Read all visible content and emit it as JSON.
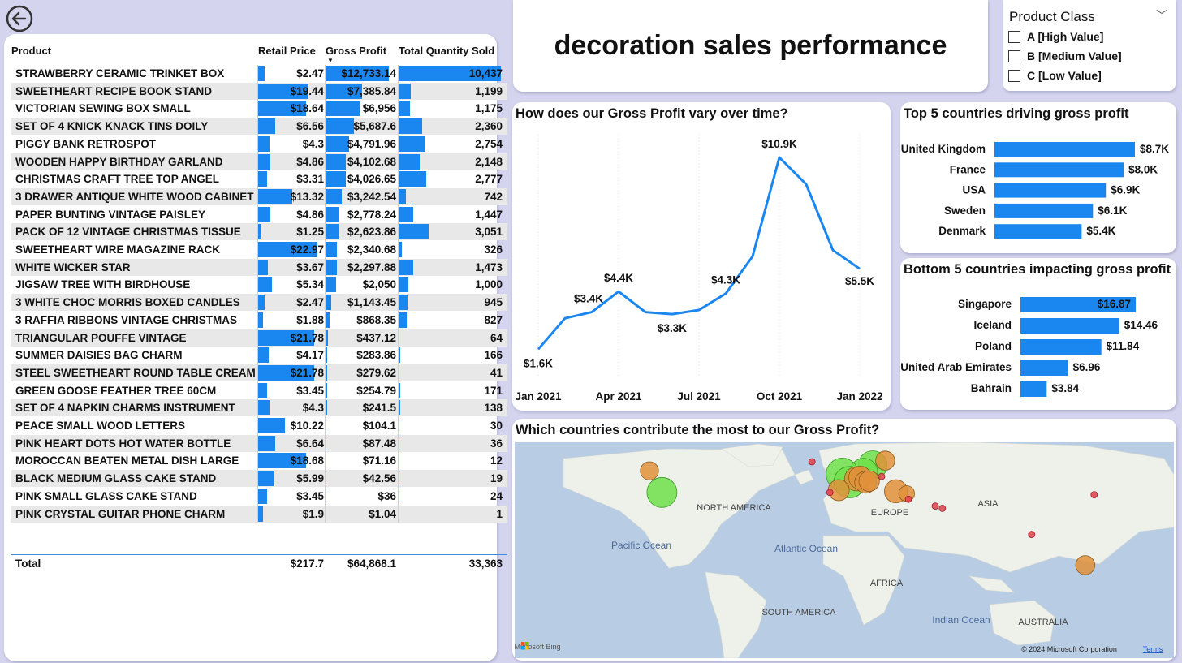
{
  "title": "decoration sales performance",
  "table": {
    "headers": {
      "product": "Product",
      "retail_price": "Retail Price",
      "gross_profit": "Gross Profit",
      "total_quantity": "Total Quantity Sold"
    },
    "rows": [
      {
        "product": "STRAWBERRY CERAMIC TRINKET BOX",
        "price": "$2.47",
        "price_v": 2.47,
        "profit": "$12,733.14",
        "profit_v": 12733.14,
        "qty": "10,437",
        "qty_v": 10437
      },
      {
        "product": "SWEETHEART RECIPE BOOK STAND",
        "price": "$19.44",
        "price_v": 19.44,
        "profit": "$7,385.84",
        "profit_v": 7385.84,
        "qty": "1,199",
        "qty_v": 1199
      },
      {
        "product": "VICTORIAN SEWING BOX SMALL",
        "price": "$18.64",
        "price_v": 18.64,
        "profit": "$6,956",
        "profit_v": 6956,
        "qty": "1,175",
        "qty_v": 1175
      },
      {
        "product": "SET OF 4 KNICK KNACK TINS DOILY",
        "price": "$6.56",
        "price_v": 6.56,
        "profit": "$5,687.6",
        "profit_v": 5687.6,
        "qty": "2,360",
        "qty_v": 2360
      },
      {
        "product": "PIGGY BANK RETROSPOT",
        "price": "$4.3",
        "price_v": 4.3,
        "profit": "$4,791.96",
        "profit_v": 4791.96,
        "qty": "2,754",
        "qty_v": 2754
      },
      {
        "product": "WOODEN HAPPY BIRTHDAY GARLAND",
        "price": "$4.86",
        "price_v": 4.86,
        "profit": "$4,102.68",
        "profit_v": 4102.68,
        "qty": "2,148",
        "qty_v": 2148
      },
      {
        "product": "CHRISTMAS CRAFT TREE TOP ANGEL",
        "price": "$3.31",
        "price_v": 3.31,
        "profit": "$4,026.65",
        "profit_v": 4026.65,
        "qty": "2,777",
        "qty_v": 2777
      },
      {
        "product": "3 DRAWER ANTIQUE WHITE WOOD CABINET",
        "price": "$13.32",
        "price_v": 13.32,
        "profit": "$3,242.54",
        "profit_v": 3242.54,
        "qty": "742",
        "qty_v": 742
      },
      {
        "product": "PAPER BUNTING VINTAGE PAISLEY",
        "price": "$4.86",
        "price_v": 4.86,
        "profit": "$2,778.24",
        "profit_v": 2778.24,
        "qty": "1,447",
        "qty_v": 1447
      },
      {
        "product": "PACK OF 12 VINTAGE CHRISTMAS TISSUE",
        "price": "$1.25",
        "price_v": 1.25,
        "profit": "$2,623.86",
        "profit_v": 2623.86,
        "qty": "3,051",
        "qty_v": 3051
      },
      {
        "product": "SWEETHEART WIRE MAGAZINE RACK",
        "price": "$22.97",
        "price_v": 22.97,
        "profit": "$2,340.68",
        "profit_v": 2340.68,
        "qty": "326",
        "qty_v": 326
      },
      {
        "product": "WHITE WICKER STAR",
        "price": "$3.67",
        "price_v": 3.67,
        "profit": "$2,297.88",
        "profit_v": 2297.88,
        "qty": "1,473",
        "qty_v": 1473
      },
      {
        "product": "JIGSAW TREE WITH BIRDHOUSE",
        "price": "$5.34",
        "price_v": 5.34,
        "profit": "$2,050",
        "profit_v": 2050,
        "qty": "1,000",
        "qty_v": 1000
      },
      {
        "product": "3 WHITE CHOC MORRIS BOXED CANDLES",
        "price": "$2.47",
        "price_v": 2.47,
        "profit": "$1,143.45",
        "profit_v": 1143.45,
        "qty": "945",
        "qty_v": 945
      },
      {
        "product": "3 RAFFIA RIBBONS VINTAGE CHRISTMAS",
        "price": "$1.88",
        "price_v": 1.88,
        "profit": "$868.35",
        "profit_v": 868.35,
        "qty": "827",
        "qty_v": 827
      },
      {
        "product": "TRIANGULAR POUFFE VINTAGE",
        "price": "$21.78",
        "price_v": 21.78,
        "profit": "$437.12",
        "profit_v": 437.12,
        "qty": "64",
        "qty_v": 64
      },
      {
        "product": "SUMMER DAISIES BAG CHARM",
        "price": "$4.17",
        "price_v": 4.17,
        "profit": "$283.86",
        "profit_v": 283.86,
        "qty": "166",
        "qty_v": 166
      },
      {
        "product": "STEEL SWEETHEART ROUND TABLE CREAM",
        "price": "$21.78",
        "price_v": 21.78,
        "profit": "$279.62",
        "profit_v": 279.62,
        "qty": "41",
        "qty_v": 41
      },
      {
        "product": "GREEN GOOSE FEATHER TREE 60CM",
        "price": "$3.45",
        "price_v": 3.45,
        "profit": "$254.79",
        "profit_v": 254.79,
        "qty": "171",
        "qty_v": 171
      },
      {
        "product": "SET OF 4 NAPKIN CHARMS INSTRUMENT",
        "price": "$4.3",
        "price_v": 4.3,
        "profit": "$241.5",
        "profit_v": 241.5,
        "qty": "138",
        "qty_v": 138
      },
      {
        "product": "PEACE SMALL WOOD LETTERS",
        "price": "$10.22",
        "price_v": 10.22,
        "profit": "$104.1",
        "profit_v": 104.1,
        "qty": "30",
        "qty_v": 30
      },
      {
        "product": "PINK HEART DOTS HOT WATER BOTTLE",
        "price": "$6.64",
        "price_v": 6.64,
        "profit": "$87.48",
        "profit_v": 87.48,
        "qty": "36",
        "qty_v": 36
      },
      {
        "product": "MOROCCAN BEATEN METAL DISH LARGE",
        "price": "$18.68",
        "price_v": 18.68,
        "profit": "$71.16",
        "profit_v": 71.16,
        "qty": "12",
        "qty_v": 12
      },
      {
        "product": "BLACK MEDIUM GLASS CAKE STAND",
        "price": "$5.99",
        "price_v": 5.99,
        "profit": "$42.56",
        "profit_v": 42.56,
        "qty": "19",
        "qty_v": 19
      },
      {
        "product": "PINK SMALL GLASS CAKE STAND",
        "price": "$3.45",
        "price_v": 3.45,
        "profit": "$36",
        "profit_v": 36,
        "qty": "24",
        "qty_v": 24
      },
      {
        "product": "PINK CRYSTAL GUITAR PHONE CHARM",
        "price": "$1.9",
        "price_v": 1.9,
        "profit": "$1.04",
        "profit_v": 1.04,
        "qty": "1",
        "qty_v": 1
      }
    ],
    "total": {
      "label": "Total",
      "price": "$217.7",
      "profit": "$64,868.1",
      "qty": "33,363"
    }
  },
  "slicer": {
    "title": "Product Class",
    "options": [
      "A [High Value]",
      "B [Medium Value]",
      "C [Low Value]"
    ]
  },
  "colors": {
    "bar": "#1a86f0",
    "line": "#1a86f0",
    "map_green": "#6ee04a",
    "map_orange": "#e0903a",
    "map_red": "#e0404a"
  },
  "map_labels": {
    "north_america": "NORTH AMERICA",
    "europe": "EUROPE",
    "asia": "ASIA",
    "africa": "AFRICA",
    "south_america": "SOUTH AMERICA",
    "australia": "AUSTRALIA",
    "pacific": "Pacific Ocean",
    "atlantic": "Atlantic Ocean",
    "indian": "Indian Ocean",
    "bing": "Microsoft Bing",
    "copyright": "© 2024 Microsoft Corporation",
    "terms": "Terms"
  },
  "chart_data": [
    {
      "type": "line",
      "title": "How does our Gross Profit vary over time?",
      "x_ticks": [
        "Jan 2021",
        "Apr 2021",
        "Jul 2021",
        "Oct 2021",
        "Jan 2022"
      ],
      "x": [
        "Jan 2021",
        "Feb 2021",
        "Mar 2021",
        "Apr 2021",
        "May 2021",
        "Jun 2021",
        "Jul 2021",
        "Aug 2021",
        "Sep 2021",
        "Oct 2021",
        "Nov 2021",
        "Dec 2021",
        "Jan 2022"
      ],
      "values": [
        1600,
        3100,
        3400,
        4400,
        3400,
        3300,
        3500,
        4300,
        6100,
        10900,
        9600,
        6400,
        5500
      ],
      "labels": [
        "$1.6K",
        "",
        "$3.4K",
        "$4.4K",
        "",
        "$3.3K",
        "",
        "$4.3K",
        "",
        "$10.9K",
        "",
        "",
        "$5.5K"
      ],
      "ylim": [
        0,
        12000
      ]
    },
    {
      "type": "bar",
      "orientation": "horizontal",
      "title": "Top 5 countries driving gross profit",
      "categories": [
        "United Kingdom",
        "France",
        "USA",
        "Sweden",
        "Denmark"
      ],
      "values": [
        8700,
        8000,
        6900,
        6100,
        5400
      ],
      "labels": [
        "$8.7K",
        "$8.0K",
        "$6.9K",
        "$6.1K",
        "$5.4K"
      ]
    },
    {
      "type": "bar",
      "orientation": "horizontal",
      "title": "Bottom 5 countries impacting gross profit",
      "categories": [
        "Singapore",
        "Iceland",
        "Poland",
        "United Arab Emirates",
        "Bahrain"
      ],
      "values": [
        16.87,
        14.46,
        11.84,
        6.96,
        3.84
      ],
      "labels": [
        "$16.87",
        "$14.46",
        "$11.84",
        "$6.96",
        "$3.84"
      ]
    },
    {
      "type": "scatter",
      "subtype": "bubble-map",
      "title": "Which countries contribute the most to our Gross Profit?",
      "points": [
        {
          "lon": -103,
          "lat": 38,
          "size": 6900,
          "color": "green"
        },
        {
          "lon": -110,
          "lat": 57,
          "size": 1200,
          "color": "orange"
        },
        {
          "lon": 15,
          "lat": 62,
          "size": 6100,
          "color": "green"
        },
        {
          "lon": 10,
          "lat": 56,
          "size": 5400,
          "color": "green"
        },
        {
          "lon": -2,
          "lat": 54,
          "size": 8700,
          "color": "green"
        },
        {
          "lon": 2,
          "lat": 47,
          "size": 8000,
          "color": "green"
        },
        {
          "lon": 6,
          "lat": 50,
          "size": 3500,
          "color": "orange"
        },
        {
          "lon": 8,
          "lat": 51,
          "size": 3000,
          "color": "orange"
        },
        {
          "lon": 11,
          "lat": 47,
          "size": 2500,
          "color": "orange"
        },
        {
          "lon": 13,
          "lat": 48,
          "size": 2000,
          "color": "orange"
        },
        {
          "lon": -4,
          "lat": 40,
          "size": 2200,
          "color": "orange"
        },
        {
          "lon": 28,
          "lat": 39,
          "size": 3000,
          "color": "orange"
        },
        {
          "lon": 22,
          "lat": 66,
          "size": 1500,
          "color": "orange"
        },
        {
          "lon": 34,
          "lat": 37,
          "size": 600,
          "color": "orange"
        },
        {
          "lon": -19,
          "lat": 65,
          "size": 14,
          "color": "red"
        },
        {
          "lon": 20,
          "lat": 52,
          "size": 12,
          "color": "red"
        },
        {
          "lon": -9,
          "lat": 38,
          "size": 200,
          "color": "red"
        },
        {
          "lon": 35,
          "lat": 32,
          "size": 150,
          "color": "red"
        },
        {
          "lon": 50,
          "lat": 26,
          "size": 4,
          "color": "red"
        },
        {
          "lon": 54,
          "lat": 24,
          "size": 7,
          "color": "red"
        },
        {
          "lon": 139,
          "lat": 36,
          "size": 50,
          "color": "red"
        },
        {
          "lon": 104,
          "lat": 1,
          "size": 17,
          "color": "red"
        },
        {
          "lon": 134,
          "lat": -26,
          "size": 1500,
          "color": "orange"
        }
      ]
    }
  ]
}
